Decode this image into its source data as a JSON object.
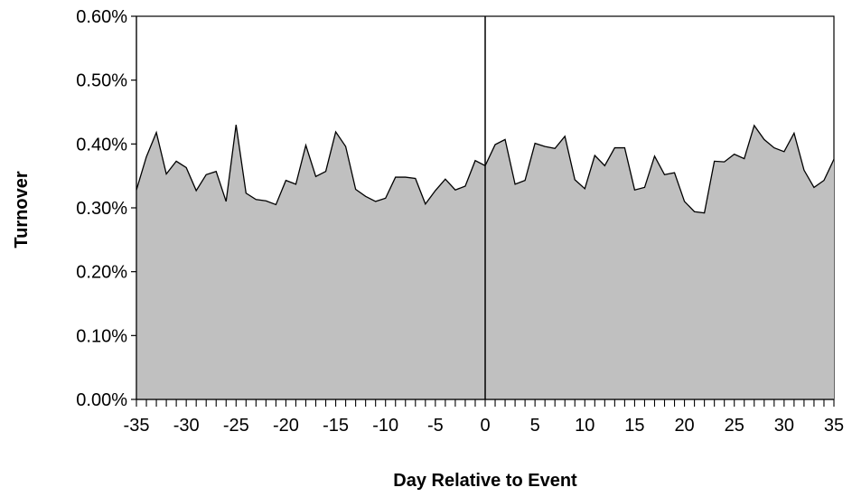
{
  "chart_data": {
    "type": "area",
    "title": "",
    "xlabel": "Day Relative to Event",
    "ylabel": "Turnover",
    "xlim": [
      -35,
      35
    ],
    "ylim": [
      0,
      0.006
    ],
    "y_format": "percent_2dp",
    "x_tick_values": [
      -35,
      -30,
      -25,
      -20,
      -15,
      -10,
      -5,
      0,
      5,
      10,
      15,
      20,
      25,
      30,
      35
    ],
    "x_tick_labels": [
      "-35",
      "-30",
      "-25",
      "-20",
      "-15",
      "-10",
      "-5",
      "0",
      "5",
      "10",
      "15",
      "20",
      "25",
      "30",
      "35"
    ],
    "y_tick_values": [
      0,
      0.001,
      0.002,
      0.003,
      0.004,
      0.005,
      0.006
    ],
    "y_tick_labels": [
      "0.00%",
      "0.10%",
      "0.20%",
      "0.30%",
      "0.40%",
      "0.50%",
      "0.60%"
    ],
    "event_line_x": 0,
    "grid": false,
    "legend": "none",
    "colors": {
      "fill": "#c0c0c0",
      "line": "#000000",
      "background": "#ffffff"
    },
    "series": [
      {
        "x": [
          -35,
          -34,
          -33,
          -32,
          -31,
          -30,
          -29,
          -28,
          -27,
          -26,
          -25,
          -24,
          -23,
          -22,
          -21,
          -20,
          -19,
          -18,
          -17,
          -16,
          -15,
          -14,
          -13,
          -12,
          -11,
          -10,
          -9,
          -8,
          -7,
          -6,
          -5,
          -4,
          -3,
          -2,
          -1,
          0,
          1,
          2,
          3,
          4,
          5,
          6,
          7,
          8,
          9,
          10,
          11,
          12,
          13,
          14,
          15,
          16,
          17,
          18,
          19,
          20,
          21,
          22,
          23,
          24,
          25,
          26,
          27,
          28,
          29,
          30,
          31,
          32,
          33,
          34,
          35
        ],
        "values": [
          0.00328,
          0.0038,
          0.00418,
          0.00353,
          0.00373,
          0.00363,
          0.00327,
          0.00352,
          0.00357,
          0.0031,
          0.0043,
          0.00323,
          0.00313,
          0.00311,
          0.00305,
          0.00343,
          0.00337,
          0.00398,
          0.00349,
          0.00357,
          0.00419,
          0.00396,
          0.00329,
          0.00318,
          0.0031,
          0.00315,
          0.00348,
          0.00348,
          0.00346,
          0.00306,
          0.00327,
          0.00345,
          0.00328,
          0.00334,
          0.00374,
          0.00366,
          0.00399,
          0.00407,
          0.00337,
          0.00343,
          0.00401,
          0.00396,
          0.00393,
          0.00412,
          0.00344,
          0.0033,
          0.00382,
          0.00366,
          0.00394,
          0.00394,
          0.00328,
          0.00332,
          0.00381,
          0.00352,
          0.00355,
          0.0031,
          0.00294,
          0.00292,
          0.00373,
          0.00372,
          0.00384,
          0.00377,
          0.00429,
          0.00407,
          0.00394,
          0.00388,
          0.00417,
          0.00359,
          0.00332,
          0.00343,
          0.00376
        ]
      }
    ]
  }
}
